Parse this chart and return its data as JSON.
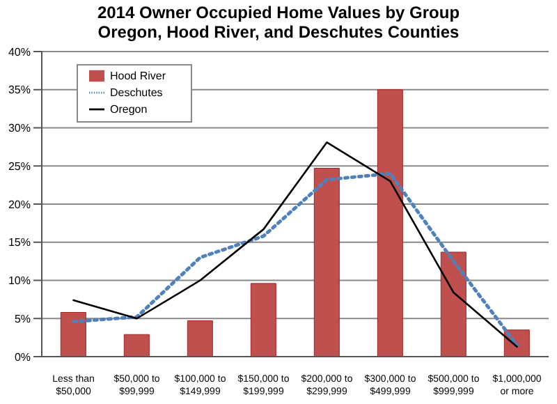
{
  "chart_data": {
    "type": "bar",
    "title": "2014 Owner Occupied Home Values by Group",
    "subtitle": "Oregon, Hood River, and Deschutes Counties",
    "categories": [
      "Less than $50,000",
      "$50,000 to $99,999",
      "$100,000 to $149,999",
      "$150,000 to $199,999",
      "$200,000 to $299,999",
      "$300,000 to $499,999",
      "$500,000 to $999,999",
      "$1,000,000 or more"
    ],
    "series": [
      {
        "name": "Hood River",
        "color": "#c0504d",
        "values": [
          5.8,
          2.9,
          4.7,
          9.6,
          24.7,
          35,
          13.7,
          3.5
        ]
      },
      {
        "name": "Deschutes",
        "type": "line",
        "color": "#4f81bd",
        "line_style": "dotted",
        "values": [
          4.6,
          5.2,
          13,
          15.8,
          23.2,
          24,
          12.5,
          1.5
        ]
      },
      {
        "name": "Oregon",
        "type": "line",
        "color": "#000000",
        "line_style": "solid",
        "values": [
          7.4,
          5,
          10,
          16.7,
          28.1,
          23,
          8.4,
          1.3
        ]
      }
    ],
    "ylim": [
      0,
      40
    ],
    "yticks": [
      {
        "value": 0,
        "label": "0%"
      },
      {
        "value": 5,
        "label": "5%"
      },
      {
        "value": 10,
        "label": "10%"
      },
      {
        "value": 15,
        "label": "15%"
      },
      {
        "value": 20,
        "label": "20%"
      },
      {
        "value": 25,
        "label": "25%"
      },
      {
        "value": 30,
        "label": "30%"
      },
      {
        "value": 35,
        "label": "35%"
      },
      {
        "value": 40,
        "label": "40%"
      }
    ],
    "grid": "y",
    "legend": "top left",
    "marker": "none"
  }
}
